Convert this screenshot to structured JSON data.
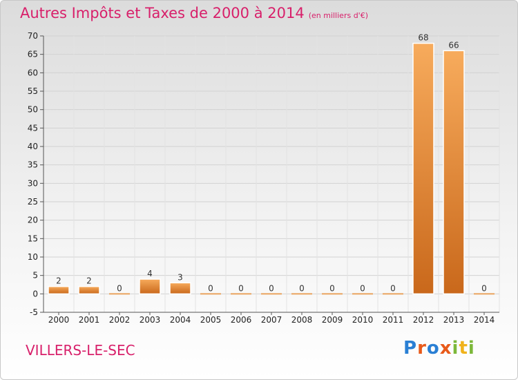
{
  "header": {
    "title": "Autres Impôts et Taxes de 2000 à 2014",
    "subtitle": "(en milliers d'€)"
  },
  "footer": {
    "commune": "VILLERS-LE-SEC",
    "logo_parts": [
      "P",
      "r",
      "o",
      "x",
      "i",
      "t",
      "i"
    ]
  },
  "colors": {
    "title": "#d81f6a",
    "bar_light": "#f7a85a",
    "bar_dark": "#c8671a"
  },
  "chart_data": {
    "type": "bar",
    "title": "Autres Impôts et Taxes de 2000 à 2014",
    "subtitle": "(en milliers d'€)",
    "xlabel": "",
    "ylabel": "",
    "categories": [
      "2000",
      "2001",
      "2002",
      "2003",
      "2004",
      "2005",
      "2006",
      "2007",
      "2008",
      "2009",
      "2010",
      "2011",
      "2012",
      "2013",
      "2014"
    ],
    "values": [
      2,
      2,
      0,
      4,
      3,
      0,
      0,
      0,
      0,
      0,
      0,
      0,
      68,
      66,
      0
    ],
    "value_labels": [
      "2",
      "2",
      "0",
      "4",
      "3",
      "0",
      "0",
      "0",
      "0",
      "0",
      "0",
      "0",
      "68",
      "66",
      "0"
    ],
    "ylim": [
      -5,
      70
    ],
    "yticks": [
      -5,
      0,
      5,
      10,
      15,
      20,
      25,
      30,
      35,
      40,
      45,
      50,
      55,
      60,
      65,
      70
    ],
    "grid": true
  }
}
